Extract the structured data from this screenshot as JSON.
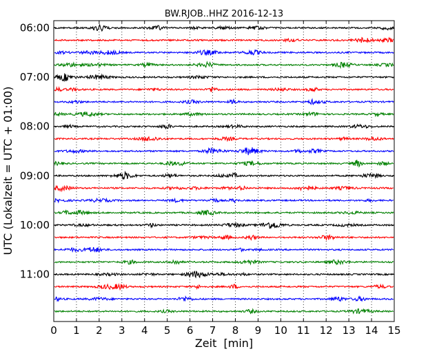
{
  "chart_data": {
    "type": "line",
    "title": "BW.RJOB..HHZ 2016-12-13",
    "xlabel": "Zeit  [min]",
    "ylabel": "UTC (Lokalzeit = UTC + 01:00)",
    "xlim": [
      0,
      15
    ],
    "x_ticks": [
      "0",
      "1",
      "2",
      "3",
      "4",
      "5",
      "6",
      "7",
      "8",
      "9",
      "10",
      "11",
      "12",
      "13",
      "14",
      "15"
    ],
    "y_tick_labels": [
      {
        "label": "06:00",
        "row": 0
      },
      {
        "label": "07:00",
        "row": 4
      },
      {
        "label": "08:00",
        "row": 8
      },
      {
        "label": "09:00",
        "row": 12
      },
      {
        "label": "10:00",
        "row": 16
      },
      {
        "label": "11:00",
        "row": 20
      }
    ],
    "row_interval_minutes": 15,
    "trace_colors": [
      "#000000",
      "#ff0000",
      "#0000ff",
      "#008000"
    ],
    "traces": [
      {
        "start": "06:00"
      },
      {
        "start": "06:15"
      },
      {
        "start": "06:30"
      },
      {
        "start": "06:45"
      },
      {
        "start": "07:00"
      },
      {
        "start": "07:15"
      },
      {
        "start": "07:30"
      },
      {
        "start": "07:45"
      },
      {
        "start": "08:00"
      },
      {
        "start": "08:15"
      },
      {
        "start": "08:30"
      },
      {
        "start": "08:45"
      },
      {
        "start": "09:00"
      },
      {
        "start": "09:15"
      },
      {
        "start": "09:30"
      },
      {
        "start": "09:45"
      },
      {
        "start": "10:00"
      },
      {
        "start": "10:15"
      },
      {
        "start": "10:30"
      },
      {
        "start": "10:45"
      },
      {
        "start": "11:00"
      },
      {
        "start": "11:15"
      },
      {
        "start": "11:30"
      },
      {
        "start": "11:45"
      }
    ],
    "grid": "vertical-dotted",
    "legend": "none"
  }
}
